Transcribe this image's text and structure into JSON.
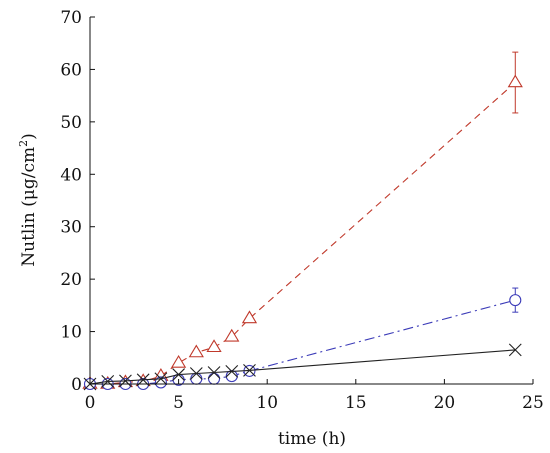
{
  "chart_data": {
    "type": "line",
    "title": "",
    "xlabel": "time (h)",
    "ylabel_main": "Nutlin (μg/cm",
    "ylabel_sup": "2",
    "ylabel_close": ")",
    "xlim": [
      0,
      25
    ],
    "ylim": [
      0,
      70
    ],
    "xticks": [
      0,
      5,
      10,
      15,
      20,
      25
    ],
    "yticks": [
      0,
      10,
      20,
      30,
      40,
      50,
      60,
      70
    ],
    "grid": false,
    "legend": "none",
    "series": [
      {
        "marker": "triangle",
        "color": "#c0392b",
        "dash": "7,5",
        "x": [
          0,
          1,
          2,
          3,
          4,
          5,
          6,
          7,
          8,
          9,
          24
        ],
        "y": [
          0,
          0,
          0.3,
          0.5,
          1.5,
          4,
          6,
          7,
          9,
          12.5,
          57.5
        ],
        "err": [
          0,
          0,
          0,
          0,
          0,
          0,
          0,
          0,
          0,
          0,
          5.8
        ]
      },
      {
        "marker": "circle",
        "color": "#3b3bb8",
        "dash": "10,4,2,4",
        "x": [
          0,
          1,
          2,
          3,
          4,
          5,
          6,
          7,
          8,
          9,
          24
        ],
        "y": [
          0,
          0,
          0,
          0,
          0.3,
          0.8,
          1,
          1,
          1.5,
          2.5,
          16
        ],
        "err": [
          0,
          0,
          0,
          0,
          0,
          0,
          0,
          0,
          0,
          0,
          2.3
        ]
      },
      {
        "marker": "x",
        "color": "#222222",
        "dash": "",
        "x": [
          0,
          1,
          2,
          3,
          4,
          5,
          6,
          7,
          8,
          9,
          24
        ],
        "y": [
          0,
          0.5,
          0.6,
          0.8,
          1,
          1.8,
          2,
          2.2,
          2.4,
          2.6,
          6.5
        ],
        "err": [
          0,
          0,
          0,
          0,
          0,
          0,
          0,
          0,
          0,
          0,
          0
        ]
      }
    ]
  }
}
